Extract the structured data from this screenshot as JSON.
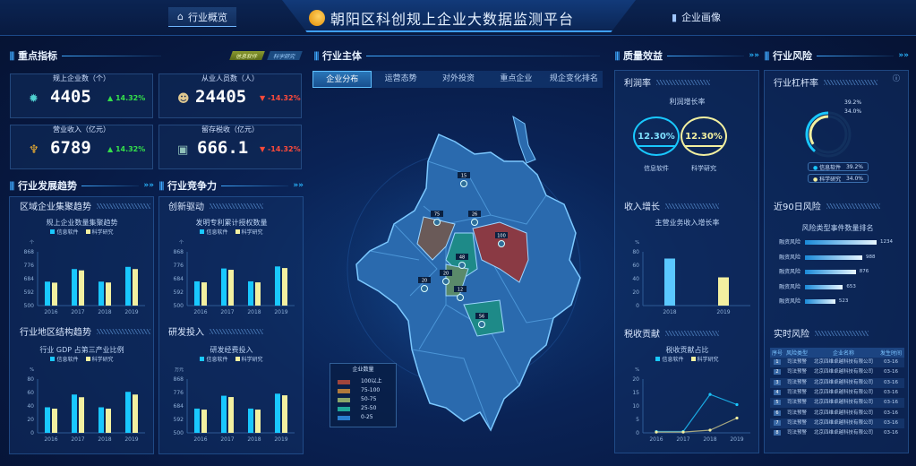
{
  "header": {
    "title": "朝阳区科创规上企业大数据监测平台",
    "nav_left": "行业概览",
    "nav_right": "企业画像"
  },
  "colors": {
    "info": "#19c8ff",
    "sci": "#f3f0a0",
    "up": "#34e04a",
    "down": "#ff4a3a",
    "bg": "#07163a"
  },
  "left": {
    "key_title": "重点指标",
    "tags": [
      "信息软件",
      "科学研究"
    ],
    "kpis": [
      {
        "label": "规上企业数（个）",
        "value": "4405",
        "change": "14.32%",
        "dir": "up",
        "icon": "gear-icon"
      },
      {
        "label": "从业人员数（人）",
        "value": "24405",
        "change": "-14.32%",
        "dir": "down",
        "icon": "people-icon"
      },
      {
        "label": "营业收入（亿元）",
        "value": "6789",
        "change": "14.32%",
        "dir": "up",
        "icon": "trophy-icon"
      },
      {
        "label": "留存税收（亿元）",
        "value": "666.1",
        "change": "-14.32%",
        "dir": "down",
        "icon": "coins-icon"
      }
    ],
    "trend_title": "行业发展趋势",
    "compete_title": "行业竞争力",
    "subs": [
      "区域企业集聚趋势",
      "行业地区结构趋势",
      "创新驱动",
      "研发投入"
    ]
  },
  "legend": {
    "info": "信息软件",
    "sci": "科学研究"
  },
  "center": {
    "title": "行业主体",
    "tabs": [
      "企业分布",
      "运营态势",
      "对外投资",
      "重点企业",
      "规企变化排名"
    ],
    "map_legend_title": "企业数量",
    "map_legend": [
      {
        "label": "100以上",
        "color": "#a0453c"
      },
      {
        "label": "75-100",
        "color": "#b07a3c"
      },
      {
        "label": "50-75",
        "color": "#8aa66a"
      },
      {
        "label": "25-50",
        "color": "#1fa89a"
      },
      {
        "label": "0-25",
        "color": "#2a7fd0"
      }
    ],
    "markers": [
      "15",
      "75",
      "26",
      "100",
      "48",
      "20",
      "20",
      "12",
      "56"
    ]
  },
  "right": {
    "quality_title": "质量效益",
    "risk_title": "行业风险",
    "profit": {
      "sub": "利润率",
      "title": "利润增长率",
      "items": [
        {
          "value": "12.30%",
          "label": "信息软件"
        },
        {
          "value": "12.30%",
          "label": "科学研究"
        }
      ]
    },
    "income_sub": "收入增长",
    "tax_sub": "税收贡献",
    "leverage": {
      "sub": "行业杠杆率",
      "items": [
        {
          "label": "信息软件",
          "value": "39.2%"
        },
        {
          "label": "科学研究",
          "value": "34.0%"
        }
      ]
    },
    "risk90": {
      "sub": "近90日风险",
      "title": "风险类型事件数量排名",
      "items": [
        {
          "label": "融资风险",
          "value": 1234
        },
        {
          "label": "融资风险",
          "value": 988
        },
        {
          "label": "融资风险",
          "value": 876
        },
        {
          "label": "融资风险",
          "value": 653
        },
        {
          "label": "融资风险",
          "value": 523
        }
      ]
    },
    "realtime": {
      "sub": "实时风险",
      "headers": [
        "序号",
        "风险类型",
        "企业名称",
        "发生时间"
      ],
      "rows": [
        [
          "1",
          "司法预警",
          "北京四维卓越科技有限公司",
          "03-16"
        ],
        [
          "2",
          "司法预警",
          "北京四维卓越科技有限公司",
          "03-16"
        ],
        [
          "3",
          "司法预警",
          "北京四维卓越科技有限公司",
          "03-16"
        ],
        [
          "4",
          "司法预警",
          "北京四维卓越科技有限公司",
          "03-16"
        ],
        [
          "5",
          "司法预警",
          "北京四维卓越科技有限公司",
          "03-16"
        ],
        [
          "6",
          "司法预警",
          "北京四维卓越科技有限公司",
          "03-16"
        ],
        [
          "7",
          "司法预警",
          "北京四维卓越科技有限公司",
          "03-16"
        ],
        [
          "8",
          "司法预警",
          "北京四维卓越科技有限公司",
          "03-16"
        ]
      ]
    }
  },
  "chart_data": [
    {
      "type": "bar",
      "title": "规上企业数量集聚趋势",
      "ylabel": "个",
      "categories": [
        "2016",
        "2017",
        "2018",
        "2019"
      ],
      "ylim": [
        500,
        868
      ],
      "yticks": [
        500,
        592,
        684,
        776,
        868
      ],
      "series": [
        {
          "name": "信息软件",
          "values": [
            664,
            750,
            664,
            765
          ]
        },
        {
          "name": "科学研究",
          "values": [
            657,
            741,
            658,
            750
          ]
        }
      ]
    },
    {
      "type": "bar",
      "title": "行业 GDP 占第三产业比例",
      "ylabel": "%",
      "categories": [
        "2016",
        "2017",
        "2018",
        "2019"
      ],
      "ylim": [
        0,
        80
      ],
      "yticks": [
        0,
        20,
        40,
        60,
        80
      ],
      "series": [
        {
          "name": "信息软件",
          "values": [
            38,
            57,
            38,
            61
          ]
        },
        {
          "name": "科学研究",
          "values": [
            36,
            53,
            36,
            57
          ]
        }
      ]
    },
    {
      "type": "bar",
      "title": "发明专利累计授权数量",
      "ylabel": "个",
      "categories": [
        "2016",
        "2017",
        "2018",
        "2019"
      ],
      "ylim": [
        500,
        868
      ],
      "yticks": [
        500,
        592,
        684,
        776,
        868
      ],
      "series": [
        {
          "name": "信息软件",
          "values": [
            666,
            754,
            666,
            768
          ]
        },
        {
          "name": "科学研究",
          "values": [
            659,
            745,
            659,
            757
          ]
        }
      ]
    },
    {
      "type": "bar",
      "title": "研发经费投入",
      "ylabel": "万元",
      "categories": [
        "2016",
        "2017",
        "2018",
        "2019"
      ],
      "ylim": [
        500,
        868
      ],
      "yticks": [
        500,
        592,
        684,
        776,
        868
      ],
      "series": [
        {
          "name": "信息软件",
          "values": [
            666,
            754,
            666,
            768
          ]
        },
        {
          "name": "科学研究",
          "values": [
            659,
            745,
            659,
            757
          ]
        }
      ]
    },
    {
      "type": "bar",
      "title": "主营业务收入增长率",
      "ylabel": "%",
      "categories": [
        "2018",
        "2019"
      ],
      "ylim": [
        0,
        80
      ],
      "yticks": [
        0,
        20,
        40,
        60,
        80
      ],
      "series": [
        {
          "values": [
            70,
            null
          ]
        },
        {
          "values": [
            null,
            42
          ]
        }
      ]
    },
    {
      "type": "line",
      "title": "税收贡献占比",
      "ylabel": "%",
      "categories": [
        "2016",
        "2017",
        "2018",
        "2019"
      ],
      "ylim": [
        0,
        20
      ],
      "yticks": [
        0,
        5,
        10,
        15,
        20
      ],
      "series": [
        {
          "name": "信息软件",
          "values": [
            0.5,
            0.5,
            14.3,
            10.5
          ]
        },
        {
          "name": "科学研究",
          "values": [
            0.3,
            0.3,
            1,
            5.5
          ]
        }
      ]
    }
  ]
}
